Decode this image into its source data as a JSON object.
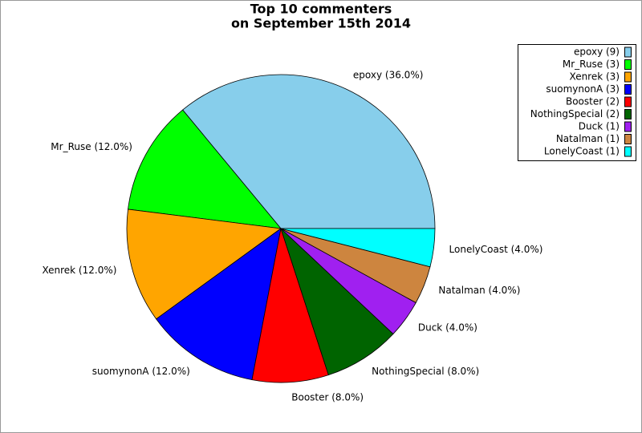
{
  "chart_data": {
    "type": "pie",
    "title": "Top 10 commenters",
    "subtitle": "on September 15th 2014",
    "categories": [
      "epoxy (9)",
      "Mr_Ruse (3)",
      "Xenrek (3)",
      "suomynonA (3)",
      "Booster (2)",
      "NothingSpecial (2)",
      "Duck (1)",
      "Natalman (1)",
      "LonelyCoast (1)"
    ],
    "values": [
      36,
      12,
      12,
      12,
      8,
      8,
      4,
      4,
      4
    ],
    "value_labels": [
      "epoxy (36.0%)",
      "Mr_Ruse (12.0%)",
      "Xenrek (12.0%)",
      "suomynonA (12.0%)",
      "Booster (8.0%)",
      "NothingSpecial (8.0%)",
      "Duck (4.0%)",
      "Natalman (4.0%)",
      "LonelyCoast (4.0%)"
    ],
    "colors": [
      "#87ceeb",
      "#00ff00",
      "#ffa500",
      "#0000ff",
      "#ff0000",
      "#006400",
      "#a020f0",
      "#cd853f",
      "#00ffff"
    ],
    "legend": "upper right"
  }
}
